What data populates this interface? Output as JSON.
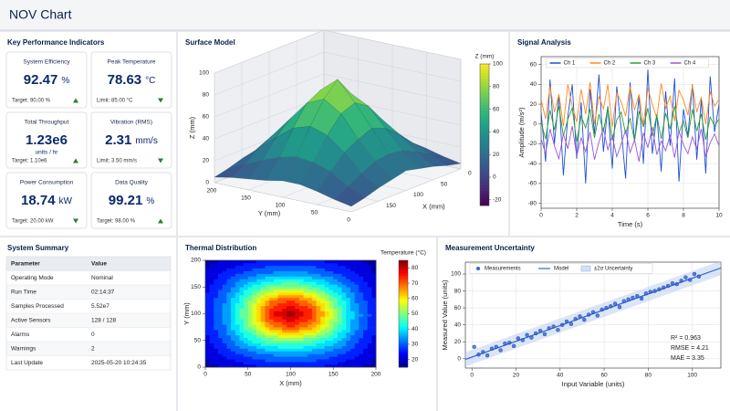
{
  "header": {
    "title": "NOV Chart"
  },
  "kpi": {
    "title": "Key Performance Indicators",
    "cards": [
      {
        "label": "System Efficiency",
        "value": "92.47",
        "unit": "%",
        "target": "Target: 90.00 %",
        "trend": "up"
      },
      {
        "label": "Peak Temperature",
        "value": "78.63",
        "unit": "°C",
        "target": "Limit: 85.00 °C",
        "trend": "down"
      },
      {
        "label": "Total Throughput",
        "value": "1.23e6",
        "unit": "units / hr",
        "unit_position": "below",
        "target": "Target: 1.10e6",
        "trend": "up"
      },
      {
        "label": "Vibration (RMS)",
        "value": "2.31",
        "unit": "mm/s",
        "target": "Limit: 3.50 mm/s",
        "trend": "down"
      },
      {
        "label": "Power Consumption",
        "value": "18.74",
        "unit": "kW",
        "target": "Target: 20.00 kW",
        "trend": "down"
      },
      {
        "label": "Data Quality",
        "value": "99.21",
        "unit": "%",
        "target": "Target: 98.00 %",
        "trend": "up"
      }
    ]
  },
  "summary": {
    "title": "System Summary",
    "table": {
      "header": [
        "Parameter",
        "Value"
      ],
      "rows": [
        [
          "Operating Mode",
          "Nominal"
        ],
        [
          "Run Time",
          "02:14:37"
        ],
        [
          "Samples Processed",
          "5.52e7"
        ],
        [
          "Active Sensors",
          "128 / 128"
        ],
        [
          "Alarms",
          "0"
        ],
        [
          "Warnings",
          "2"
        ],
        [
          "Last Update",
          "2025-05-20 10:24:35"
        ]
      ]
    }
  },
  "chart_data": [
    {
      "type": "surface",
      "title": "Surface Model",
      "xlabel": "X (mm)",
      "ylabel": "Y (mm)",
      "zlabel": "Z (mm)",
      "x": [
        0,
        25,
        50,
        75,
        100,
        125,
        150,
        175,
        200
      ],
      "y": [
        0,
        25,
        50,
        75,
        100,
        125,
        150,
        175,
        200
      ],
      "z": [
        [
          5,
          8,
          12,
          15,
          18,
          15,
          12,
          8,
          5
        ],
        [
          8,
          15,
          22,
          28,
          30,
          28,
          22,
          15,
          8
        ],
        [
          12,
          22,
          35,
          45,
          50,
          45,
          38,
          25,
          12
        ],
        [
          15,
          28,
          45,
          62,
          70,
          65,
          50,
          30,
          15
        ],
        [
          18,
          30,
          50,
          70,
          88,
          75,
          55,
          32,
          15
        ],
        [
          15,
          28,
          48,
          65,
          75,
          68,
          50,
          28,
          12
        ],
        [
          12,
          22,
          38,
          50,
          55,
          50,
          38,
          22,
          10
        ],
        [
          8,
          15,
          25,
          32,
          35,
          32,
          25,
          15,
          8
        ],
        [
          5,
          8,
          12,
          15,
          18,
          15,
          12,
          8,
          5
        ]
      ],
      "xlim": [
        0,
        200
      ],
      "ylim": [
        0,
        200
      ],
      "zlim": [
        0,
        100
      ],
      "xticks": [
        0,
        50,
        100,
        150
      ],
      "yticks": [
        0,
        50,
        100,
        150,
        200
      ],
      "zticks": [
        0,
        20,
        40,
        60,
        80,
        100
      ],
      "colormap": "viridis",
      "clim": [
        -25,
        100
      ],
      "cticks": [
        -20,
        0,
        20,
        40,
        60,
        80,
        100
      ],
      "clabel": "Z (mm)"
    },
    {
      "type": "line",
      "title": "Signal Analysis",
      "xlabel": "Time (s)",
      "ylabel": "Amplitude (m/s²)",
      "x": [
        0,
        0.25,
        0.5,
        0.75,
        1,
        1.25,
        1.5,
        1.75,
        2,
        2.25,
        2.5,
        2.75,
        3,
        3.25,
        3.5,
        3.75,
        4,
        4.25,
        4.5,
        4.75,
        5,
        5.25,
        5.5,
        5.75,
        6,
        6.25,
        6.5,
        6.75,
        7,
        7.25,
        7.5,
        7.75,
        8,
        8.25,
        8.5,
        8.75,
        9,
        9.25,
        9.5,
        9.75,
        10
      ],
      "series": [
        {
          "name": "Ch 1",
          "color": "#1f4fd8",
          "values": [
            12,
            -38,
            45,
            -20,
            30,
            -52,
            8,
            40,
            -35,
            22,
            -60,
            35,
            -10,
            50,
            -28,
            18,
            -45,
            38,
            -5,
            -55,
            42,
            -18,
            28,
            -40,
            55,
            -30,
            10,
            -48,
            33,
            -22,
            46,
            -58,
            15,
            -12,
            40,
            -36,
            25,
            -50,
            48,
            -8,
            20
          ]
        },
        {
          "name": "Ch 2",
          "color": "#ff8a1c",
          "values": [
            25,
            5,
            38,
            12,
            30,
            -2,
            40,
            18,
            2,
            35,
            10,
            42,
            0,
            28,
            15,
            40,
            -3,
            32,
            22,
            8,
            38,
            14,
            30,
            -1,
            36,
            20,
            6,
            41,
            16,
            28,
            3,
            34,
            24,
            9,
            39,
            12,
            27,
            0,
            33,
            18,
            25
          ]
        },
        {
          "name": "Ch 3",
          "color": "#2ca02c",
          "values": [
            2,
            -15,
            14,
            -6,
            18,
            -12,
            5,
            16,
            -18,
            8,
            -4,
            15,
            -14,
            10,
            -8,
            17,
            -16,
            4,
            12,
            -10,
            6,
            -17,
            13,
            -3,
            16,
            -12,
            9,
            -15,
            11,
            -5,
            18,
            -9,
            3,
            -14,
            15,
            -7,
            10,
            -16,
            7,
            -2,
            5
          ]
        },
        {
          "name": "Ch 4",
          "color": "#9b55d6",
          "values": [
            -15,
            -30,
            -5,
            -22,
            -35,
            -10,
            -25,
            -2,
            -32,
            -14,
            -28,
            -8,
            -36,
            -18,
            -4,
            -26,
            -12,
            -33,
            -20,
            -6,
            -29,
            -16,
            -38,
            -9,
            -24,
            -3,
            -31,
            -17,
            -27,
            -11,
            -34,
            -7,
            -21,
            -30,
            -13,
            -25,
            -5,
            -33,
            -19,
            -10,
            -22
          ]
        }
      ],
      "xlim": [
        0,
        10
      ],
      "ylim": [
        -85,
        68
      ],
      "xticks": [
        0,
        2,
        4,
        6,
        8,
        10
      ],
      "yticks": [
        -80,
        -60,
        -40,
        -20,
        0,
        20,
        40,
        60
      ],
      "grid": true
    },
    {
      "type": "heatmap",
      "title": "Thermal Distribution",
      "xlabel": "X (mm)",
      "ylabel": "Y (mm)",
      "x": [
        0,
        25,
        50,
        75,
        100,
        125,
        150,
        175,
        200
      ],
      "y": [
        0,
        25,
        50,
        75,
        100,
        125,
        150,
        175,
        200
      ],
      "z": [
        [
          18,
          20,
          22,
          24,
          25,
          24,
          22,
          20,
          18
        ],
        [
          20,
          25,
          30,
          33,
          35,
          33,
          30,
          25,
          20
        ],
        [
          22,
          30,
          40,
          48,
          50,
          47,
          40,
          30,
          22
        ],
        [
          24,
          33,
          48,
          65,
          72,
          66,
          50,
          34,
          24
        ],
        [
          25,
          35,
          52,
          75,
          83,
          74,
          54,
          36,
          25
        ],
        [
          24,
          33,
          48,
          66,
          73,
          65,
          49,
          33,
          23
        ],
        [
          22,
          30,
          40,
          48,
          52,
          47,
          39,
          30,
          21
        ],
        [
          20,
          25,
          30,
          33,
          35,
          33,
          29,
          24,
          19
        ],
        [
          18,
          20,
          22,
          24,
          25,
          24,
          22,
          20,
          18
        ]
      ],
      "xlim": [
        0,
        200
      ],
      "ylim": [
        0,
        200
      ],
      "xticks": [
        0,
        50,
        100,
        150,
        200
      ],
      "yticks": [
        0,
        50,
        100,
        150,
        200
      ],
      "grid": false,
      "colormap": "jet",
      "clim": [
        15,
        85
      ],
      "cticks": [
        20,
        30,
        40,
        50,
        60,
        70,
        80
      ],
      "clabel": "Temperature (°C)"
    },
    {
      "type": "scatter",
      "title": "Measurement Uncertainty",
      "xlabel": "Input Variable (units)",
      "ylabel": "Measured Value (units)",
      "series": [
        {
          "name": "Measurements",
          "color": "#2f64d6",
          "x": [
            1,
            3,
            5,
            7,
            9,
            11,
            13,
            15,
            17,
            19,
            21,
            23,
            25,
            27,
            29,
            31,
            33,
            35,
            37,
            39,
            41,
            43,
            45,
            47,
            49,
            51,
            53,
            55,
            57,
            59,
            61,
            63,
            65,
            67,
            69,
            71,
            73,
            75,
            77,
            79,
            81,
            83,
            85,
            87,
            89,
            91,
            93,
            95,
            97,
            99,
            101,
            103
          ],
          "values": [
            14,
            5,
            8,
            4,
            12,
            14,
            10,
            18,
            19,
            15,
            24,
            22,
            28,
            25,
            30,
            33,
            29,
            36,
            38,
            34,
            40,
            44,
            41,
            47,
            50,
            46,
            52,
            55,
            51,
            58,
            60,
            62,
            65,
            61,
            68,
            70,
            72,
            74,
            71,
            77,
            79,
            80,
            82,
            84,
            86,
            89,
            88,
            92,
            96,
            93,
            100,
            97
          ]
        }
      ],
      "model": {
        "name": "Model",
        "color": "#2f64d6",
        "x": [
          -3,
          113
        ],
        "values": [
          -0.79,
          107.09
        ]
      },
      "band": {
        "name": "±2σ Uncertainty",
        "color": "#b7cbf2",
        "x": [
          -3,
          113
        ],
        "lower": [
          -9.19,
          98.69
        ],
        "upper": [
          7.61,
          115.49
        ]
      },
      "annotations": [
        "R² = 0.963",
        "RMSE = 4.21",
        "MAE = 3.35"
      ],
      "xlim": [
        -3,
        113
      ],
      "ylim": [
        -11,
        114
      ],
      "xticks": [
        0,
        20,
        40,
        60,
        80,
        100
      ],
      "yticks": [
        0,
        20,
        40,
        60,
        80,
        100
      ],
      "grid": true
    }
  ]
}
